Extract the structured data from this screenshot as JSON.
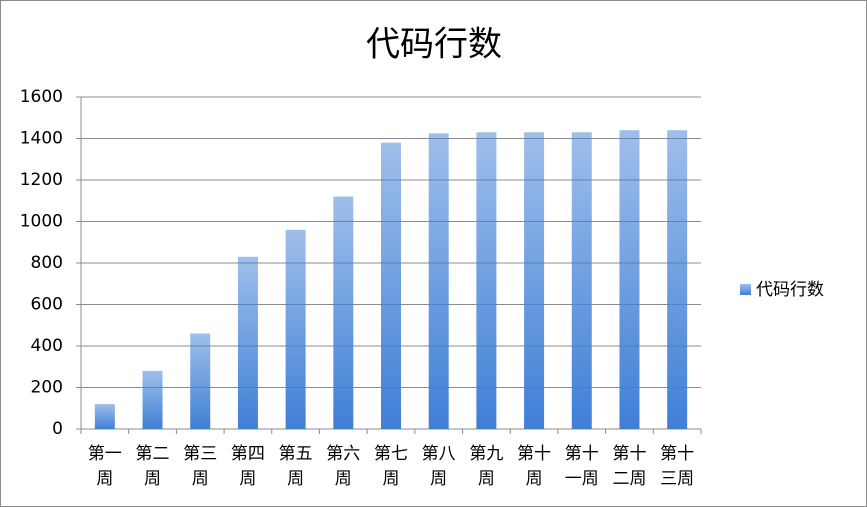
{
  "chart_data": {
    "type": "bar",
    "title": "代码行数",
    "categories": [
      "第一周",
      "第二周",
      "第三周",
      "第四周",
      "第五周",
      "第六周",
      "第七周",
      "第八周",
      "第九周",
      "第十周",
      "第十一周",
      "第十二周",
      "第十三周"
    ],
    "series": [
      {
        "name": "代码行数",
        "color": "#3f7fd6",
        "values": [
          120,
          280,
          460,
          830,
          960,
          1120,
          1380,
          1425,
          1430,
          1430,
          1430,
          1440,
          1440
        ]
      }
    ],
    "ylim": [
      0,
      1600
    ],
    "yticks": [
      0,
      200,
      400,
      600,
      800,
      1000,
      1200,
      1400,
      1600
    ],
    "grid": true,
    "legend": "right"
  }
}
